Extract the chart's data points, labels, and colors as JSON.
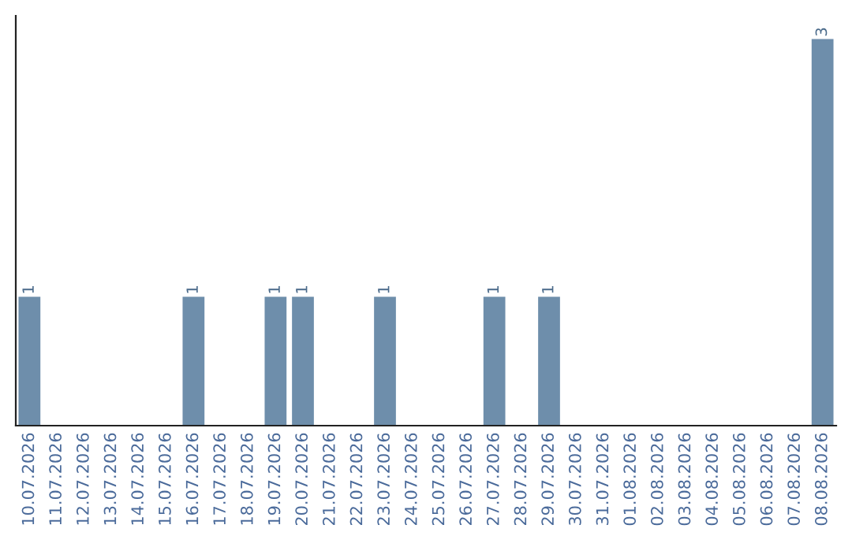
{
  "chart_data": {
    "type": "bar",
    "categories": [
      "10.07.2026",
      "11.07.2026",
      "12.07.2026",
      "13.07.2026",
      "14.07.2026",
      "15.07.2026",
      "16.07.2026",
      "17.07.2026",
      "18.07.2026",
      "19.07.2026",
      "20.07.2026",
      "21.07.2026",
      "22.07.2026",
      "23.07.2026",
      "24.07.2026",
      "25.07.2026",
      "26.07.2026",
      "27.07.2026",
      "28.07.2026",
      "29.07.2026",
      "30.07.2026",
      "31.07.2026",
      "01.08.2026",
      "02.08.2026",
      "03.08.2026",
      "04.08.2026",
      "05.08.2026",
      "06.08.2026",
      "07.08.2026",
      "08.08.2026"
    ],
    "values": [
      1,
      0,
      0,
      0,
      0,
      0,
      1,
      0,
      0,
      1,
      1,
      0,
      0,
      1,
      0,
      0,
      0,
      1,
      0,
      1,
      0,
      0,
      0,
      0,
      0,
      0,
      0,
      0,
      0,
      3
    ],
    "value_labels": [
      "1",
      null,
      null,
      null,
      null,
      null,
      "1",
      null,
      null,
      "1",
      "1",
      null,
      null,
      "1",
      null,
      null,
      null,
      "1",
      null,
      "1",
      null,
      null,
      null,
      null,
      null,
      null,
      null,
      null,
      null,
      "3"
    ],
    "color": "#6e8eab",
    "tick_labels": "x",
    "grid": false,
    "legend": false
  }
}
